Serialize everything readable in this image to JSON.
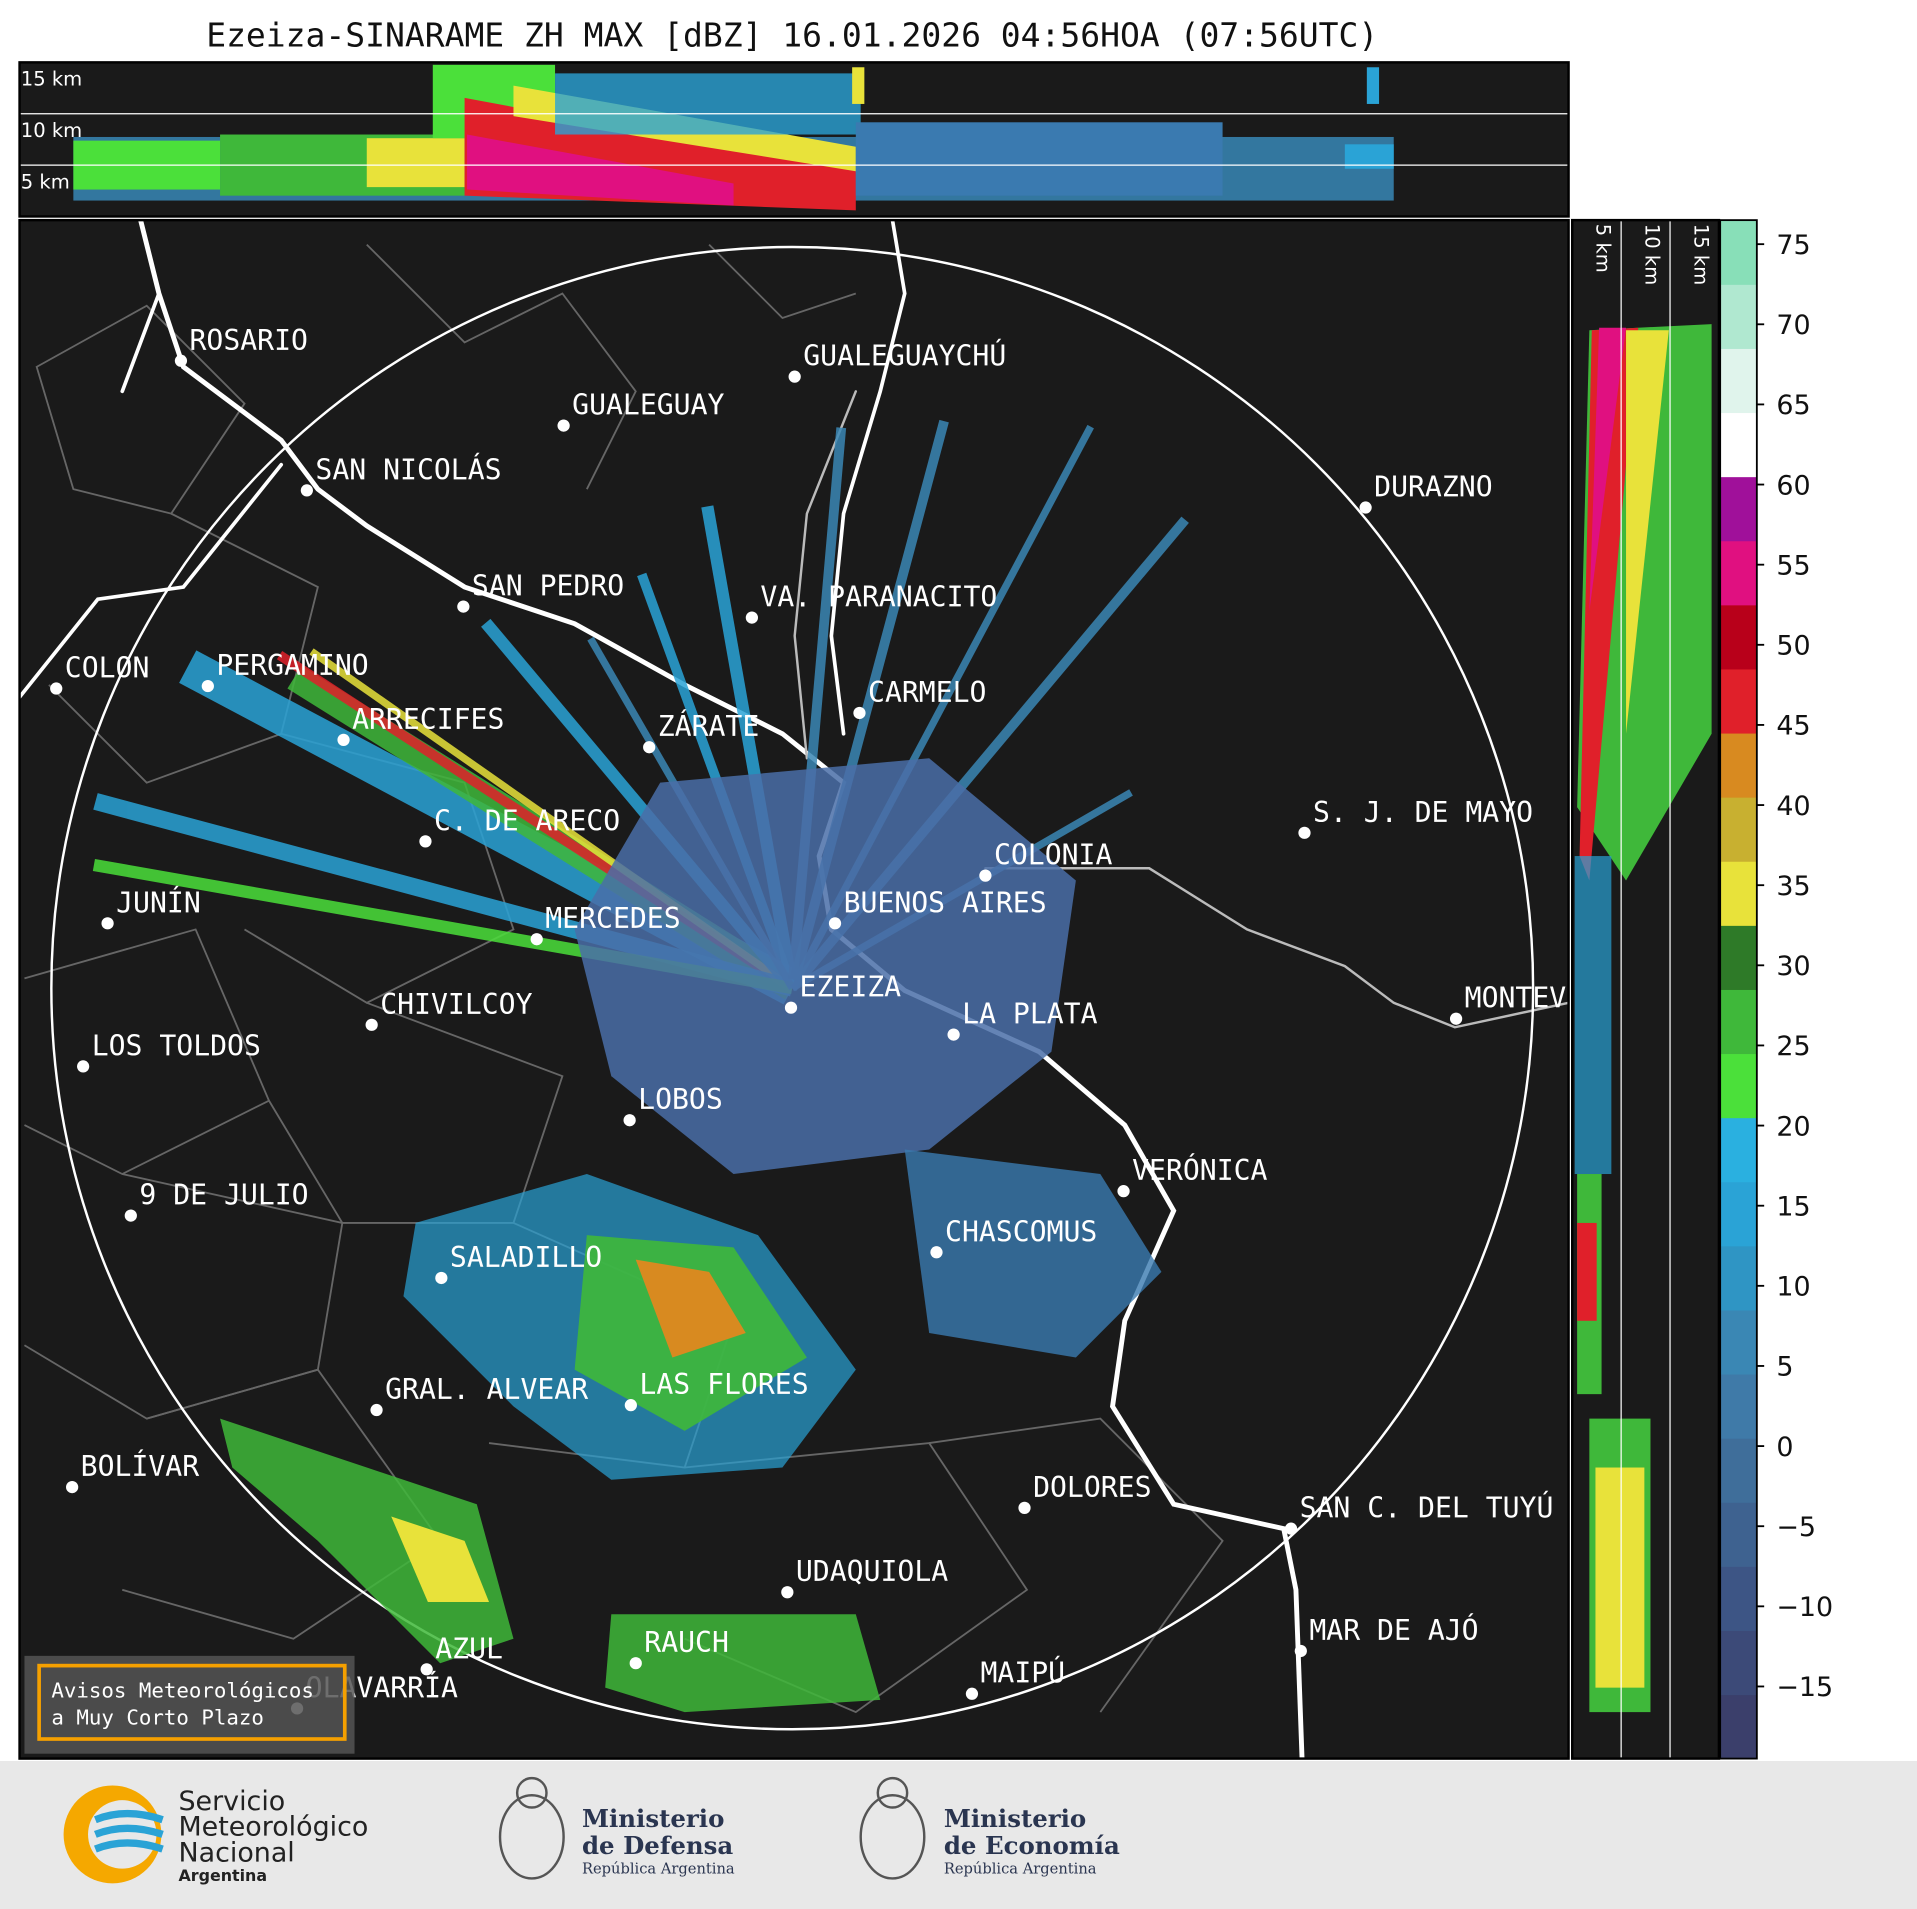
{
  "header": {
    "title": "Ezeiza-SINARAME ZH MAX [dBZ] 16.01.2026 04:56HOA (07:56UTC)"
  },
  "top_height_labels": [
    "15 km",
    "10 km",
    "5 km"
  ],
  "side_height_labels": [
    "5 km",
    "10 km",
    "15 km"
  ],
  "map": {
    "cities": [
      "ROSARIO",
      "GUALEGUAYCHÚ",
      "GUALEGUAY",
      "SAN NICOLÁS",
      "DURAZNO",
      "SAN PEDRO",
      "VA. PARANACITO",
      "COLON",
      "PERGAMINO",
      "CARMELO",
      "ARRECIFES",
      "ZÁRATE",
      "S. J. DE MAYO",
      "C. DE ARECO",
      "COLONIA",
      "JUNÍN",
      "BUENOS AIRES",
      "MERCEDES",
      "EZEIZA",
      "MONTEV",
      "CHIVILCOY",
      "LA PLATA",
      "LOS TOLDOS",
      "LOBOS",
      "VERÓNICA",
      "9 DE JULIO",
      "CHASCOMUS",
      "SALADILLO",
      "GRAL. ALVEAR",
      "LAS FLORES",
      "BOLÍVAR",
      "DOLORES",
      "SAN C. DEL TUYÚ",
      "UDAQUIOLA",
      "MAR DE AJÓ",
      "RAUCH",
      "AZUL",
      "OLAVARRÍA",
      "MAIPÚ"
    ]
  },
  "colorbar": {
    "lim": [
      -19.5,
      76.5
    ],
    "ticks": [
      75,
      70,
      65,
      60,
      55,
      50,
      45,
      40,
      35,
      30,
      25,
      20,
      15,
      10,
      5,
      0,
      {
        "value": -5,
        "label": "−5"
      },
      {
        "value": -10,
        "label": "−10"
      },
      {
        "value": -15,
        "label": "−15"
      }
    ],
    "colors": [
      "#3b3f6b",
      "#3c4a78",
      "#3d5585",
      "#3e6290",
      "#3f6e9a",
      "#3f7aa8",
      "#3a87b4",
      "#2f95c4",
      "#2aa3d6",
      "#2ab0e0",
      "#4be03a",
      "#3fb83a",
      "#2e7a28",
      "#e8e23a",
      "#c8b030",
      "#d88a20",
      "#e0202a",
      "#b8001a",
      "#e01080",
      "#a0109a",
      "#ffffff",
      "#e0f4ec",
      "#b0e8d0",
      "#88dfb8"
    ]
  },
  "notice": [
    "Avisos Meteorológicos",
    "a Muy Corto Plazo"
  ],
  "footer": {
    "smn": [
      "Servicio",
      "Meteorológico",
      "Nacional",
      "Argentina"
    ],
    "defensa": [
      "Ministerio",
      "de Defensa",
      "República Argentina"
    ],
    "economia": [
      "Ministerio",
      "de Economía",
      "República Argentina"
    ]
  }
}
